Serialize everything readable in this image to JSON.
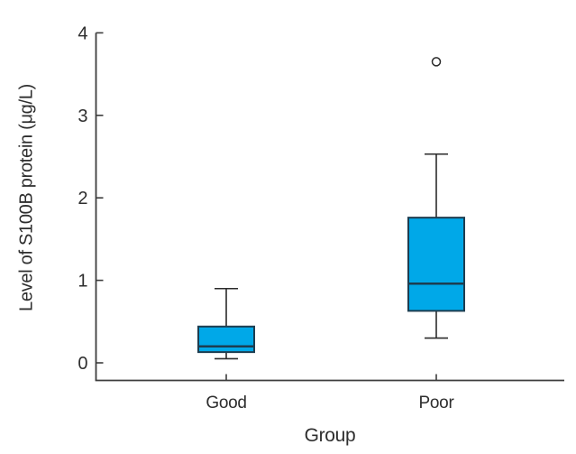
{
  "chart_data": {
    "type": "boxplot",
    "title": "",
    "xlabel": "Group",
    "ylabel": "Level of S100B protein (μg/L)",
    "categories": [
      "Good",
      "Poor"
    ],
    "series": [
      {
        "name": "Good",
        "whisker_low": 0.05,
        "q1": 0.13,
        "median": 0.2,
        "q3": 0.44,
        "whisker_high": 0.9,
        "outliers": []
      },
      {
        "name": "Poor",
        "whisker_low": 0.3,
        "q1": 0.63,
        "median": 0.96,
        "q3": 1.76,
        "whisker_high": 2.53,
        "outliers": [
          3.65
        ]
      }
    ],
    "ylim": [
      0,
      4
    ],
    "yticks": [
      0,
      1,
      2,
      3,
      4
    ],
    "grid": false,
    "legend": "none",
    "colors": {
      "box_fill": "#00A8E8",
      "box_border": "#1D3D50",
      "axis": "#3D3D3D",
      "whisker": "#2B2B2B",
      "text": "#2E2E2E"
    }
  }
}
